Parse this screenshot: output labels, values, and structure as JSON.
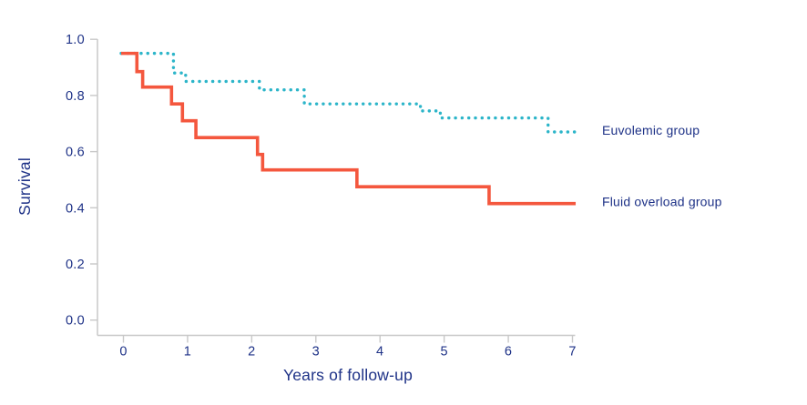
{
  "chart_data": {
    "type": "line",
    "subtype": "kaplan-meier-step-survival",
    "title": "",
    "xlabel": "Years of follow-up",
    "ylabel": "Survival",
    "xlim": [
      0,
      7
    ],
    "ylim": [
      0.0,
      1.0
    ],
    "x_ticks": [
      0,
      1,
      2,
      3,
      4,
      5,
      6,
      7
    ],
    "y_ticks": [
      {
        "label": "1.0",
        "value": 1.0
      },
      {
        "label": "0.8",
        "value": 0.8
      },
      {
        "label": "0.6",
        "value": 0.6
      },
      {
        "label": "0.4",
        "value": 0.4
      },
      {
        "label": "0.2",
        "value": 0.2
      },
      {
        "label": "0.0",
        "value": 0.0
      }
    ],
    "grid": false,
    "legend_position": "right-of-curve-annotations",
    "series": [
      {
        "name": "Euvolemic group",
        "style": "dotted",
        "color": "#2cb5c9",
        "start": [
          0,
          0.95
        ],
        "drops": [
          [
            0.78,
            0.88
          ],
          [
            0.97,
            0.85
          ],
          [
            2.12,
            0.82
          ],
          [
            2.82,
            0.77
          ],
          [
            4.63,
            0.745
          ],
          [
            4.94,
            0.72
          ],
          [
            6.62,
            0.67
          ]
        ],
        "end_x": 7.07,
        "final_value": 0.67
      },
      {
        "name": "Fluid overload group",
        "style": "solid",
        "color": "#f4573e",
        "start": [
          0,
          0.95
        ],
        "drops": [
          [
            0.21,
            0.885
          ],
          [
            0.3,
            0.83
          ],
          [
            0.75,
            0.77
          ],
          [
            0.92,
            0.71
          ],
          [
            1.13,
            0.65
          ],
          [
            2.09,
            0.59
          ],
          [
            2.17,
            0.535
          ],
          [
            3.64,
            0.475
          ],
          [
            5.7,
            0.415
          ]
        ],
        "end_x": 7.05,
        "final_value": 0.415
      }
    ],
    "colors": {
      "axis": "#c8c8c8",
      "text": "#1e3287",
      "euvolemic": "#2cb5c9",
      "fluid_overload": "#f4573e",
      "background": "#ffffff"
    }
  }
}
